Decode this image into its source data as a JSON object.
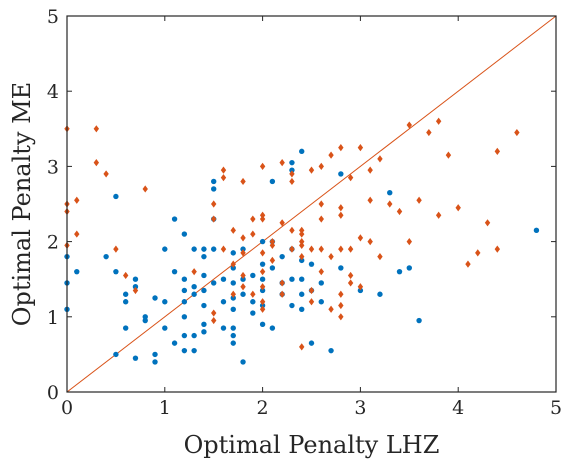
{
  "chart_data": {
    "type": "scatter",
    "title": "",
    "xlabel": "Optimal Penalty LHZ",
    "ylabel": "Optimal Penalty ME",
    "xlim": [
      0,
      5
    ],
    "ylim": [
      0,
      5
    ],
    "xticks": [
      "0",
      "1",
      "2",
      "3",
      "4",
      "5"
    ],
    "yticks": [
      "0",
      "1",
      "2",
      "3",
      "4",
      "5"
    ],
    "grid": false,
    "legend": "none",
    "reference_line": {
      "x": [
        0,
        5
      ],
      "y": [
        0,
        5
      ],
      "color": "#D95319"
    },
    "series": [
      {
        "marker": "dot",
        "color": "#0072BD",
        "points": [
          [
            0,
            1.1
          ],
          [
            0,
            1.45
          ],
          [
            0,
            1.8
          ],
          [
            0.1,
            1.6
          ],
          [
            0.4,
            1.8
          ],
          [
            0.5,
            2.6
          ],
          [
            0.5,
            1.6
          ],
          [
            0.5,
            0.5
          ],
          [
            0.6,
            1.3
          ],
          [
            0.6,
            1.2
          ],
          [
            0.6,
            0.85
          ],
          [
            0.7,
            1.5
          ],
          [
            0.7,
            1.4
          ],
          [
            0.7,
            0.45
          ],
          [
            0.8,
            1.0
          ],
          [
            0.8,
            0.95
          ],
          [
            0.9,
            1.25
          ],
          [
            0.9,
            0.5
          ],
          [
            0.9,
            0.4
          ],
          [
            1.0,
            1.9
          ],
          [
            1.0,
            1.2
          ],
          [
            1.0,
            0.85
          ],
          [
            1.1,
            2.3
          ],
          [
            1.1,
            1.6
          ],
          [
            1.1,
            0.65
          ],
          [
            1.2,
            2.1
          ],
          [
            1.2,
            1.5
          ],
          [
            1.2,
            1.35
          ],
          [
            1.2,
            1.2
          ],
          [
            1.2,
            1.0
          ],
          [
            1.2,
            0.75
          ],
          [
            1.2,
            0.55
          ],
          [
            1.3,
            1.9
          ],
          [
            1.3,
            1.4
          ],
          [
            1.3,
            1.3
          ],
          [
            1.3,
            0.75
          ],
          [
            1.3,
            0.55
          ],
          [
            1.4,
            1.9
          ],
          [
            1.4,
            1.8
          ],
          [
            1.4,
            1.55
          ],
          [
            1.4,
            1.35
          ],
          [
            1.4,
            1.15
          ],
          [
            1.4,
            0.9
          ],
          [
            1.4,
            0.8
          ],
          [
            1.5,
            2.8
          ],
          [
            1.5,
            2.7
          ],
          [
            1.5,
            2.3
          ],
          [
            1.5,
            1.9
          ],
          [
            1.5,
            1.45
          ],
          [
            1.6,
            1.5
          ],
          [
            1.6,
            1.2
          ],
          [
            1.6,
            0.85
          ],
          [
            1.7,
            1.85
          ],
          [
            1.7,
            1.65
          ],
          [
            1.7,
            1.45
          ],
          [
            1.7,
            1.25
          ],
          [
            1.7,
            1.1
          ],
          [
            1.7,
            0.85
          ],
          [
            1.7,
            0.75
          ],
          [
            1.7,
            0.65
          ],
          [
            1.8,
            1.9
          ],
          [
            1.8,
            1.5
          ],
          [
            1.8,
            1.3
          ],
          [
            1.8,
            0.4
          ],
          [
            1.9,
            1.55
          ],
          [
            1.9,
            1.2
          ],
          [
            1.9,
            1.05
          ],
          [
            2.0,
            2.0
          ],
          [
            2.0,
            1.7
          ],
          [
            2.0,
            1.5
          ],
          [
            2.0,
            1.35
          ],
          [
            2.0,
            1.15
          ],
          [
            2.0,
            0.9
          ],
          [
            2.1,
            2.8
          ],
          [
            2.1,
            2.0
          ],
          [
            2.1,
            1.65
          ],
          [
            2.1,
            0.85
          ],
          [
            2.2,
            1.8
          ],
          [
            2.2,
            1.45
          ],
          [
            2.2,
            1.3
          ],
          [
            2.3,
            3.05
          ],
          [
            2.3,
            2.95
          ],
          [
            2.3,
            1.9
          ],
          [
            2.3,
            1.5
          ],
          [
            2.3,
            1.15
          ],
          [
            2.4,
            3.2
          ],
          [
            2.4,
            1.75
          ],
          [
            2.4,
            1.5
          ],
          [
            2.4,
            1.3
          ],
          [
            2.4,
            1.1
          ],
          [
            2.5,
            1.7
          ],
          [
            2.5,
            1.35
          ],
          [
            2.5,
            0.65
          ],
          [
            2.6,
            1.45
          ],
          [
            2.6,
            1.2
          ],
          [
            2.7,
            0.55
          ],
          [
            2.8,
            2.9
          ],
          [
            2.8,
            1.65
          ],
          [
            3.0,
            1.35
          ],
          [
            3.2,
            1.3
          ],
          [
            3.3,
            2.65
          ],
          [
            3.4,
            1.6
          ],
          [
            3.5,
            1.65
          ],
          [
            3.6,
            0.95
          ],
          [
            4.8,
            2.15
          ]
        ]
      },
      {
        "marker": "diamond",
        "color": "#D95319",
        "points": [
          [
            0,
            3.5
          ],
          [
            0,
            2.5
          ],
          [
            0,
            2.4
          ],
          [
            0,
            1.95
          ],
          [
            0.1,
            2.55
          ],
          [
            0.1,
            2.1
          ],
          [
            0.3,
            3.5
          ],
          [
            0.3,
            3.05
          ],
          [
            0.4,
            2.9
          ],
          [
            0.5,
            1.9
          ],
          [
            0.6,
            1.55
          ],
          [
            0.7,
            1.35
          ],
          [
            0.8,
            2.7
          ],
          [
            1.3,
            1.6
          ],
          [
            1.5,
            2.5
          ],
          [
            1.5,
            2.3
          ],
          [
            1.5,
            1.05
          ],
          [
            1.5,
            0.95
          ],
          [
            1.6,
            2.95
          ],
          [
            1.6,
            2.85
          ],
          [
            1.6,
            1.9
          ],
          [
            1.7,
            2.15
          ],
          [
            1.7,
            1.7
          ],
          [
            1.7,
            1.3
          ],
          [
            1.8,
            2.8
          ],
          [
            1.8,
            2.05
          ],
          [
            1.8,
            1.85
          ],
          [
            1.8,
            1.55
          ],
          [
            1.8,
            1.4
          ],
          [
            1.9,
            2.3
          ],
          [
            1.9,
            2.1
          ],
          [
            1.9,
            1.3
          ],
          [
            2.0,
            3.0
          ],
          [
            2.0,
            2.35
          ],
          [
            2.0,
            2.3
          ],
          [
            2.0,
            1.85
          ],
          [
            2.0,
            1.6
          ],
          [
            2.0,
            1.4
          ],
          [
            2.0,
            1.2
          ],
          [
            2.0,
            1.1
          ],
          [
            2.1,
            2.0
          ],
          [
            2.1,
            1.95
          ],
          [
            2.1,
            1.75
          ],
          [
            2.2,
            3.05
          ],
          [
            2.2,
            2.25
          ],
          [
            2.2,
            1.45
          ],
          [
            2.2,
            1.3
          ],
          [
            2.3,
            2.9
          ],
          [
            2.3,
            2.8
          ],
          [
            2.3,
            2.15
          ],
          [
            2.3,
            1.9
          ],
          [
            2.4,
            2.15
          ],
          [
            2.4,
            2.1
          ],
          [
            2.4,
            2.0
          ],
          [
            2.4,
            1.95
          ],
          [
            2.4,
            1.8
          ],
          [
            2.4,
            0.6
          ],
          [
            2.5,
            2.95
          ],
          [
            2.5,
            1.9
          ],
          [
            2.5,
            1.35
          ],
          [
            2.5,
            1.2
          ],
          [
            2.6,
            3.0
          ],
          [
            2.6,
            2.5
          ],
          [
            2.6,
            2.3
          ],
          [
            2.6,
            1.9
          ],
          [
            2.6,
            1.6
          ],
          [
            2.7,
            3.15
          ],
          [
            2.7,
            1.8
          ],
          [
            2.7,
            1.1
          ],
          [
            2.8,
            3.25
          ],
          [
            2.8,
            2.45
          ],
          [
            2.8,
            2.35
          ],
          [
            2.8,
            1.9
          ],
          [
            2.8,
            1.3
          ],
          [
            2.8,
            1.15
          ],
          [
            2.8,
            1.0
          ],
          [
            2.9,
            2.85
          ],
          [
            2.9,
            1.9
          ],
          [
            2.9,
            1.55
          ],
          [
            2.9,
            1.45
          ],
          [
            3.0,
            3.25
          ],
          [
            3.0,
            2.05
          ],
          [
            3.0,
            1.4
          ],
          [
            3.1,
            2.95
          ],
          [
            3.1,
            2.55
          ],
          [
            3.1,
            2.0
          ],
          [
            3.2,
            3.1
          ],
          [
            3.2,
            1.8
          ],
          [
            3.3,
            2.5
          ],
          [
            3.4,
            2.4
          ],
          [
            3.5,
            3.55
          ],
          [
            3.5,
            2.0
          ],
          [
            3.6,
            2.55
          ],
          [
            3.7,
            3.45
          ],
          [
            3.8,
            3.6
          ],
          [
            3.8,
            2.35
          ],
          [
            3.9,
            3.15
          ],
          [
            4.0,
            2.45
          ],
          [
            4.1,
            1.7
          ],
          [
            4.2,
            1.85
          ],
          [
            4.3,
            2.25
          ],
          [
            4.4,
            3.2
          ],
          [
            4.4,
            1.9
          ],
          [
            4.6,
            3.45
          ]
        ]
      }
    ]
  }
}
